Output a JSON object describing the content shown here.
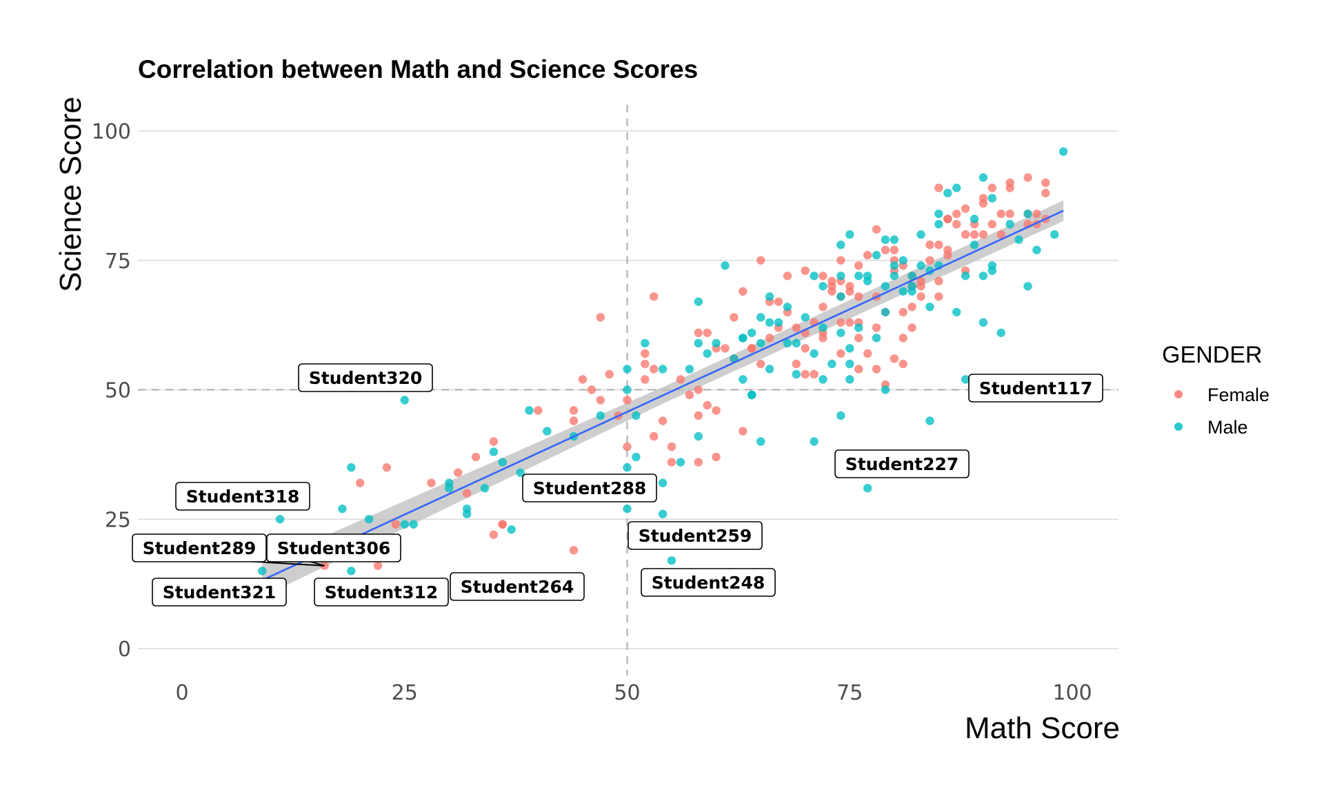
{
  "chart_data": {
    "type": "scatter",
    "title": "Correlation between Math and Science Scores",
    "xlabel": "Math Score",
    "ylabel": "Science Score",
    "xlim": [
      -5,
      105
    ],
    "ylim": [
      -5,
      105
    ],
    "xticks": [
      "0",
      "25",
      "50",
      "75",
      "100"
    ],
    "yticks": [
      "0",
      "25",
      "50",
      "75",
      "100"
    ],
    "grid": "horizontal major gridlines only",
    "reference_lines": {
      "x": 50,
      "y": 50,
      "style": "dashed gray"
    },
    "legend": {
      "title": "GENDER",
      "position": "right",
      "entries": [
        "Female",
        "Male"
      ]
    },
    "colors": {
      "Female": "#F8766D",
      "Male": "#00BFC4",
      "trend": "#3366FF",
      "band": "#bdbdbd"
    },
    "trend": {
      "method": "linear regression with confidence band",
      "x": [
        9,
        99
      ],
      "y": [
        13.2,
        84.6
      ],
      "band_halfwidth": [
        3.2,
        1.6,
        2.0
      ]
    },
    "series": [
      {
        "name": "Female",
        "x": [
          16,
          22,
          24,
          23,
          20,
          28,
          31,
          32,
          33,
          35,
          35,
          36,
          40,
          44,
          45,
          44,
          47,
          46,
          48,
          49,
          50,
          50,
          52,
          52,
          52,
          53,
          53,
          54,
          55,
          55,
          56,
          57,
          58,
          58,
          58,
          59,
          59,
          60,
          60,
          61,
          62,
          62,
          63,
          64,
          65,
          65,
          66,
          67,
          68,
          69,
          69,
          70,
          70,
          71,
          71,
          72,
          72,
          73,
          73,
          74,
          74,
          75,
          75,
          75,
          76,
          76,
          77,
          77,
          78,
          78,
          79,
          79,
          79,
          80,
          80,
          81,
          81,
          82,
          82,
          83,
          83,
          84,
          84,
          85,
          85,
          85,
          86,
          86,
          87,
          87,
          88,
          88,
          89,
          89,
          90,
          90,
          91,
          91,
          92,
          92,
          93,
          93,
          95,
          95,
          96,
          97,
          97,
          97,
          96,
          85,
          81,
          73,
          76,
          74,
          76,
          78,
          80,
          82,
          47,
          53,
          60,
          66,
          68,
          70,
          72,
          74,
          78,
          80,
          83,
          86,
          90,
          95,
          44,
          58,
          63,
          64,
          67,
          70,
          72,
          74,
          76,
          81,
          82,
          86,
          88,
          93,
          36
        ],
        "y": [
          16,
          16,
          24,
          35,
          32,
          32,
          34,
          30,
          37,
          40,
          22,
          24,
          46,
          44,
          52,
          19,
          64,
          50,
          53,
          45,
          48,
          39,
          57,
          55,
          52,
          54,
          68,
          44,
          39,
          36,
          52,
          49,
          50,
          45,
          36,
          61,
          47,
          37,
          46,
          58,
          64,
          56,
          42,
          58,
          75,
          55,
          67,
          62,
          65,
          62,
          55,
          73,
          58,
          63,
          53,
          61,
          66,
          70,
          71,
          63,
          57,
          69,
          70,
          63,
          68,
          63,
          57,
          76,
          62,
          68,
          51,
          65,
          77,
          56,
          75,
          60,
          65,
          62,
          72,
          68,
          71,
          78,
          75,
          89,
          78,
          71,
          77,
          83,
          82,
          84,
          85,
          73,
          80,
          82,
          86,
          87,
          89,
          82,
          84,
          80,
          90,
          89,
          91,
          84,
          82,
          83,
          88,
          90,
          84,
          68,
          55,
          69,
          60,
          71,
          74,
          81,
          77,
          66,
          48,
          41,
          58,
          60,
          72,
          53,
          60,
          68,
          54,
          73,
          70,
          83,
          80,
          82,
          46,
          61,
          69,
          58,
          67,
          61,
          72,
          75,
          54,
          74,
          70,
          76,
          80,
          84,
          24
        ]
      },
      {
        "name": "Male",
        "x": [
          9,
          11,
          18,
          19,
          21,
          19,
          25,
          25,
          30,
          32,
          32,
          34,
          35,
          36,
          37,
          38,
          39,
          41,
          44,
          50,
          50,
          50,
          51,
          51,
          52,
          54,
          54,
          55,
          56,
          58,
          58,
          58,
          59,
          60,
          61,
          62,
          63,
          63,
          64,
          64,
          65,
          65,
          66,
          66,
          67,
          68,
          68,
          69,
          69,
          70,
          71,
          71,
          72,
          72,
          73,
          74,
          74,
          74,
          75,
          75,
          75,
          76,
          76,
          77,
          77,
          78,
          78,
          79,
          79,
          79,
          80,
          80,
          81,
          81,
          82,
          82,
          83,
          83,
          84,
          84,
          85,
          85,
          86,
          87,
          87,
          88,
          89,
          89,
          90,
          90,
          91,
          91,
          91,
          92,
          93,
          94,
          95,
          95,
          96,
          98,
          99,
          90,
          88,
          77,
          74,
          71,
          65,
          63,
          64,
          57,
          50,
          54,
          47,
          30,
          26,
          85,
          66,
          75,
          72,
          74,
          79,
          80,
          82,
          84
        ],
        "y": [
          15,
          25,
          27,
          35,
          25,
          15,
          48,
          24,
          31,
          27,
          26,
          31,
          38,
          36,
          23,
          34,
          46,
          42,
          41,
          50,
          35,
          27,
          45,
          37,
          59,
          26,
          32,
          17,
          36,
          59,
          67,
          41,
          57,
          59,
          74,
          56,
          52,
          60,
          61,
          49,
          40,
          59,
          63,
          54,
          63,
          66,
          59,
          53,
          59,
          64,
          72,
          40,
          52,
          62,
          55,
          78,
          72,
          45,
          80,
          58,
          55,
          72,
          62,
          31,
          71,
          76,
          60,
          79,
          70,
          65,
          72,
          79,
          75,
          69,
          72,
          70,
          80,
          74,
          73,
          44,
          84,
          74,
          88,
          65,
          89,
          72,
          83,
          78,
          91,
          72,
          74,
          87,
          73,
          61,
          82,
          79,
          84,
          70,
          77,
          80,
          96,
          63,
          52,
          72,
          68,
          57,
          64,
          60,
          49,
          54,
          54,
          54,
          45,
          32,
          24,
          82,
          68,
          52,
          70,
          61,
          50,
          74,
          69,
          66
        ]
      }
    ],
    "annotations": [
      {
        "text": "Student320",
        "x": 25,
        "y": 48
      },
      {
        "text": "Student117",
        "x": 90,
        "y": 46
      },
      {
        "text": "Student318",
        "x": 11,
        "y": 25
      },
      {
        "text": "Student289",
        "x": 16,
        "y": 16
      },
      {
        "text": "Student306",
        "x": 16,
        "y": 16
      },
      {
        "text": "Student321",
        "x": 9,
        "y": 15
      },
      {
        "text": "Student312",
        "x": 19,
        "y": 15
      },
      {
        "text": "Student264",
        "x": 42,
        "y": 16
      },
      {
        "text": "Student288",
        "x": 50,
        "y": 27
      },
      {
        "text": "Student259",
        "x": 54,
        "y": 26
      },
      {
        "text": "Student248",
        "x": 55,
        "y": 17
      },
      {
        "text": "Student227",
        "x": 77,
        "y": 31
      }
    ]
  }
}
